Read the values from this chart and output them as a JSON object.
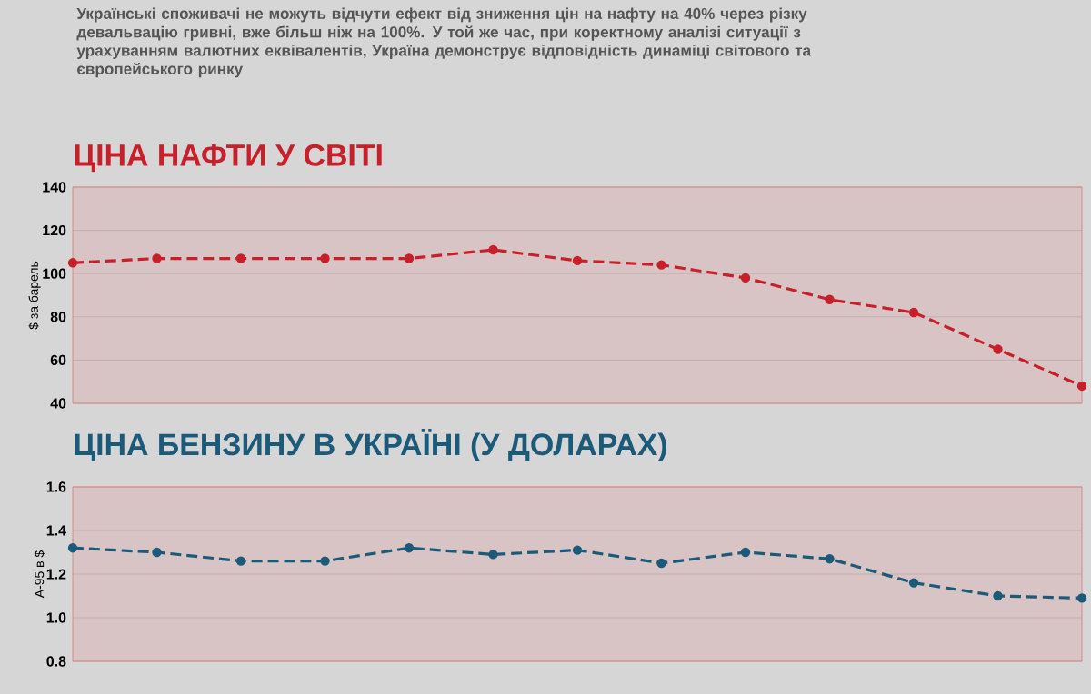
{
  "chart_data": [
    {
      "type": "line",
      "title": "ЦІНА НАФТИ У СВІТІ",
      "annotations": [
        "Українські споживачі не можуть відчути ефект від зниження цін на нафту на 40% через різку девальвацію гривні, вже більш ніж на 100%. У той же час, при коректному аналізі ситуації з урахуванням валютних еквівалентів, Україна демонструє відповідність динаміці світового та європейського ринку"
      ],
      "ylabel": "$ за барель",
      "categories": [
        null,
        null,
        null,
        null,
        null,
        null,
        null,
        null,
        null,
        null,
        null,
        null,
        null
      ],
      "series": [
        {
          "color": "#c8202a",
          "values": [
            105,
            107,
            107,
            107,
            107,
            111,
            106,
            104,
            98,
            88,
            82,
            65,
            48
          ]
        }
      ],
      "ylim": [
        40,
        140
      ],
      "yticks": [
        40,
        60,
        80,
        100,
        120,
        140
      ],
      "grid": "y",
      "marker": "circle",
      "line_style": "dashed",
      "tick_labels": "y"
    },
    {
      "type": "line",
      "title": "ЦІНА БЕНЗИНУ В УКРАЇНІ (У ДОЛАРАХ)",
      "ylabel": "А-95 в $",
      "categories": [
        null,
        null,
        null,
        null,
        null,
        null,
        null,
        null,
        null,
        null,
        null,
        null,
        null
      ],
      "series": [
        {
          "color": "#1c5a7a",
          "values": [
            1.32,
            1.3,
            1.26,
            1.26,
            1.32,
            1.29,
            1.31,
            1.25,
            1.3,
            1.27,
            1.16,
            1.1,
            1.09
          ]
        }
      ],
      "ylim": [
        0.8,
        1.6
      ],
      "yticks": [
        0.8,
        {
          "value": 1.0,
          "label": "1.0"
        },
        1.2,
        1.4,
        1.6
      ],
      "grid": "y",
      "marker": "circle",
      "line_style": "dashed",
      "tick_labels": "y"
    }
  ]
}
